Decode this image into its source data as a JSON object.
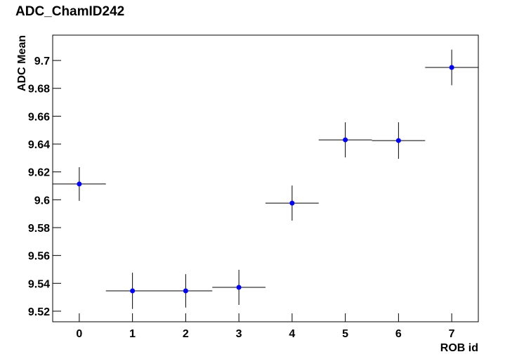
{
  "chart_data": {
    "type": "errorbar",
    "title": "ADC_ChamID242",
    "x_label": "ROB id",
    "y_label": "ADC Mean",
    "x": [
      0,
      1,
      2,
      3,
      4,
      5,
      6,
      7
    ],
    "values": [
      9.6113,
      9.5346,
      9.5346,
      9.5371,
      9.5976,
      9.643,
      9.6425,
      9.695
    ],
    "xerr": [
      0.5,
      0.5,
      0.5,
      0.5,
      0.5,
      0.5,
      0.5,
      0.5
    ],
    "yerr": [
      0.0121,
      0.013,
      0.012,
      0.0126,
      0.0126,
      0.0126,
      0.0131,
      0.0128
    ],
    "color": "#0000ff",
    "xlim": [
      -0.5,
      7.5
    ],
    "ylim": [
      9.5124,
      9.7182
    ],
    "xticks": [
      0,
      1,
      2,
      3,
      4,
      5,
      6,
      7
    ],
    "yticks": [
      9.52,
      9.54,
      9.56,
      9.58,
      9.6,
      9.62,
      9.64,
      9.66,
      9.68,
      9.7
    ]
  }
}
